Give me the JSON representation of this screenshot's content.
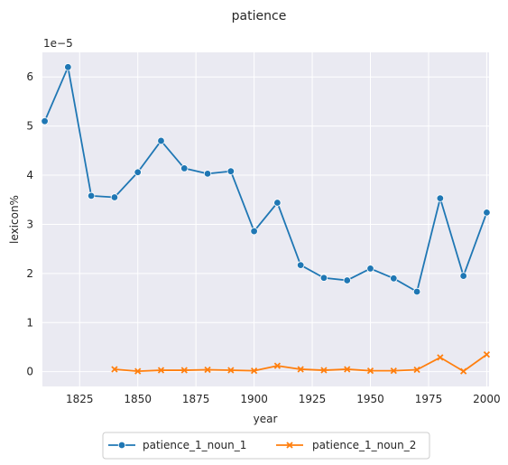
{
  "chart_data": {
    "type": "line",
    "title": "patience",
    "xlabel": "year",
    "ylabel": "lexicon%",
    "y_multiplier_label": "1e−5",
    "y_scale": 1e-05,
    "xlim": [
      1809,
      2001
    ],
    "ylim": [
      -0.3,
      6.5
    ],
    "x_ticks": [
      1825,
      1850,
      1875,
      1900,
      1925,
      1950,
      1975,
      2000
    ],
    "y_ticks": [
      0,
      1,
      2,
      3,
      4,
      5,
      6
    ],
    "grid": true,
    "legend_placement": "bottom-center",
    "series": [
      {
        "name": "patience_1_noun_1",
        "color": "#1f77b4",
        "marker": "circle",
        "x": [
          1810,
          1820,
          1830,
          1840,
          1850,
          1860,
          1870,
          1880,
          1890,
          1900,
          1910,
          1920,
          1930,
          1940,
          1950,
          1960,
          1970,
          1980,
          1990,
          2000
        ],
        "y": [
          5.1,
          6.2,
          3.58,
          3.55,
          4.06,
          4.7,
          4.14,
          4.03,
          4.08,
          2.86,
          3.44,
          2.17,
          1.91,
          1.86,
          2.1,
          1.9,
          1.63,
          3.53,
          1.95,
          3.24
        ]
      },
      {
        "name": "patience_1_noun_2",
        "color": "#ff7f0e",
        "marker": "x",
        "x": [
          1840,
          1850,
          1860,
          1870,
          1880,
          1890,
          1900,
          1910,
          1920,
          1930,
          1940,
          1950,
          1960,
          1970,
          1980,
          1990,
          2000
        ],
        "y": [
          0.05,
          0.01,
          0.03,
          0.03,
          0.04,
          0.03,
          0.02,
          0.12,
          0.05,
          0.03,
          0.05,
          0.02,
          0.02,
          0.04,
          0.29,
          0.01,
          0.35
        ]
      }
    ]
  }
}
